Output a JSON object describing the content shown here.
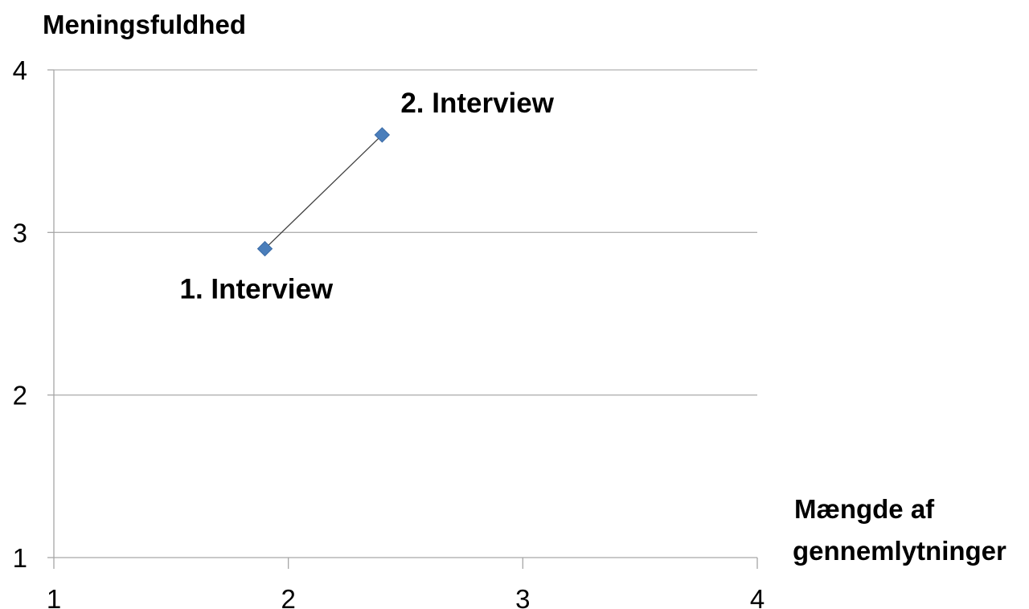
{
  "chart_data": {
    "type": "line",
    "title": "",
    "ylabel": "Meningsfuldhed",
    "xlabel_lines": [
      "Mængde af",
      "gennemlytninger"
    ],
    "xlim": [
      1,
      4
    ],
    "ylim": [
      1,
      4
    ],
    "x_ticks": [
      1,
      2,
      3,
      4
    ],
    "y_ticks": [
      1,
      2,
      3,
      4
    ],
    "grid": "horizontal",
    "legend": "none",
    "series": [
      {
        "points": [
          {
            "x": 1.9,
            "y": 2.9,
            "label": "1. Interview",
            "label_position": "below-left"
          },
          {
            "x": 2.4,
            "y": 3.6,
            "label": "2. Interview",
            "label_position": "above-right"
          }
        ],
        "marker": "diamond",
        "marker_color": "#4a7ebb",
        "line_color": "#404040"
      }
    ],
    "colors": {
      "grid": "#b0b0b0",
      "axis": "#a6a6a6"
    }
  }
}
